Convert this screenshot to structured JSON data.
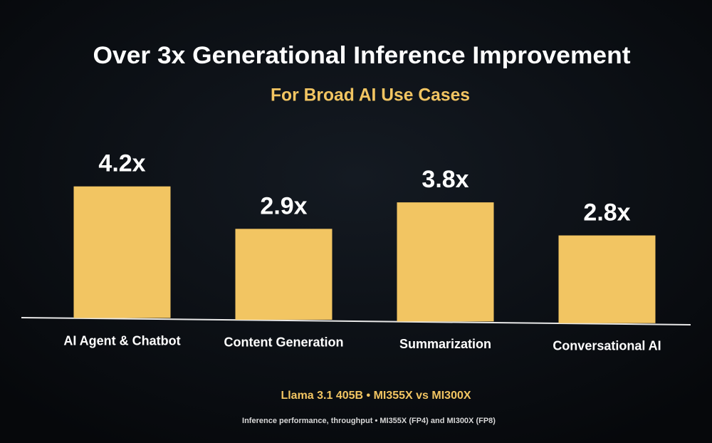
{
  "chart_data": {
    "type": "bar",
    "title": "Over 3x Generational Inference Improvement",
    "subtitle": "For Broad AI Use Cases",
    "categories": [
      "AI Agent & Chatbot",
      "Content Generation",
      "Summarization",
      "Conversational AI"
    ],
    "values": [
      4.2,
      2.9,
      3.8,
      2.8
    ],
    "value_labels": [
      "4.2x",
      "2.9x",
      "3.8x",
      "2.8x"
    ],
    "color": "#f2c562",
    "annotations": [
      "Llama 3.1 405B  •  MI355X vs MI300X",
      "Inference performance, throughput  • MI355X (FP4) and MI300X (FP8)"
    ]
  }
}
